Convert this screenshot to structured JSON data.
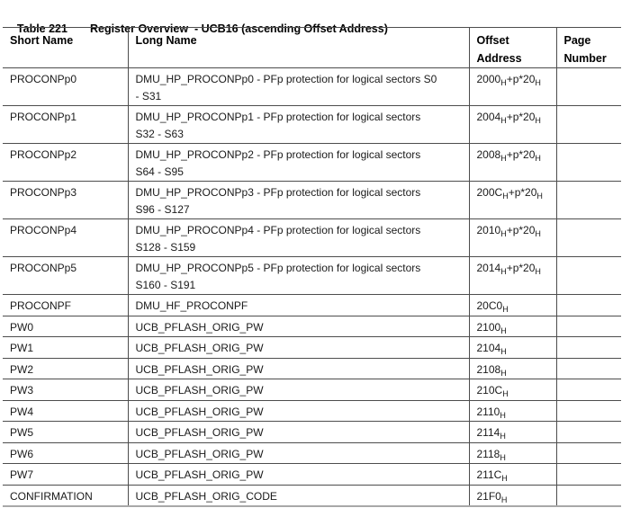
{
  "caption": {
    "label": "Table 221",
    "title": "Register Overview  - UCB16 (ascending Offset Address)"
  },
  "table": {
    "columns": [
      {
        "label": "Short Name"
      },
      {
        "label": "Long Name"
      },
      {
        "label": "Offset Address"
      },
      {
        "label": "Page Number"
      }
    ],
    "offset_subscript": "H",
    "rows": [
      {
        "short_name": "PROCONPp0",
        "long_name_lines": [
          "DMU_HP_PROCONPp0 - PFp protection for logical sectors S0",
          "- S31"
        ],
        "offset_parts": [
          "2000",
          "+p*20"
        ],
        "page_number": ""
      },
      {
        "short_name": "PROCONPp1",
        "long_name_lines": [
          "DMU_HP_PROCONPp1 - PFp protection for logical sectors",
          "S32 - S63"
        ],
        "offset_parts": [
          "2004",
          "+p*20"
        ],
        "page_number": ""
      },
      {
        "short_name": "PROCONPp2",
        "long_name_lines": [
          "DMU_HP_PROCONPp2 - PFp protection for logical sectors",
          "S64 - S95"
        ],
        "offset_parts": [
          "2008",
          "+p*20"
        ],
        "page_number": ""
      },
      {
        "short_name": "PROCONPp3",
        "long_name_lines": [
          "DMU_HP_PROCONPp3 - PFp protection for logical sectors",
          "S96 - S127"
        ],
        "offset_parts": [
          "200C",
          "+p*20"
        ],
        "page_number": ""
      },
      {
        "short_name": "PROCONPp4",
        "long_name_lines": [
          "DMU_HP_PROCONPp4 - PFp protection for logical sectors",
          "S128 - S159"
        ],
        "offset_parts": [
          "2010",
          "+p*20"
        ],
        "page_number": ""
      },
      {
        "short_name": "PROCONPp5",
        "long_name_lines": [
          "DMU_HP_PROCONPp5 - PFp protection for logical sectors",
          "S160 - S191"
        ],
        "offset_parts": [
          "2014",
          "+p*20"
        ],
        "page_number": ""
      },
      {
        "short_name": "PROCONPF",
        "long_name_lines": [
          "DMU_HF_PROCONPF"
        ],
        "offset_parts": [
          "20C0"
        ],
        "page_number": ""
      },
      {
        "short_name": "PW0",
        "long_name_lines": [
          "UCB_PFLASH_ORIG_PW"
        ],
        "offset_parts": [
          "2100"
        ],
        "page_number": ""
      },
      {
        "short_name": "PW1",
        "long_name_lines": [
          "UCB_PFLASH_ORIG_PW"
        ],
        "offset_parts": [
          "2104"
        ],
        "page_number": ""
      },
      {
        "short_name": "PW2",
        "long_name_lines": [
          "UCB_PFLASH_ORIG_PW"
        ],
        "offset_parts": [
          "2108"
        ],
        "page_number": ""
      },
      {
        "short_name": "PW3",
        "long_name_lines": [
          "UCB_PFLASH_ORIG_PW"
        ],
        "offset_parts": [
          "210C"
        ],
        "page_number": ""
      },
      {
        "short_name": "PW4",
        "long_name_lines": [
          "UCB_PFLASH_ORIG_PW"
        ],
        "offset_parts": [
          "2110"
        ],
        "page_number": ""
      },
      {
        "short_name": "PW5",
        "long_name_lines": [
          "UCB_PFLASH_ORIG_PW"
        ],
        "offset_parts": [
          "2114"
        ],
        "page_number": ""
      },
      {
        "short_name": "PW6",
        "long_name_lines": [
          "UCB_PFLASH_ORIG_PW"
        ],
        "offset_parts": [
          "2118"
        ],
        "page_number": ""
      },
      {
        "short_name": "PW7",
        "long_name_lines": [
          "UCB_PFLASH_ORIG_PW"
        ],
        "offset_parts": [
          "211C"
        ],
        "page_number": ""
      },
      {
        "short_name": "CONFIRMATION",
        "long_name_lines": [
          "UCB_PFLASH_ORIG_CODE"
        ],
        "offset_parts": [
          "21F0"
        ],
        "page_number": ""
      }
    ]
  }
}
